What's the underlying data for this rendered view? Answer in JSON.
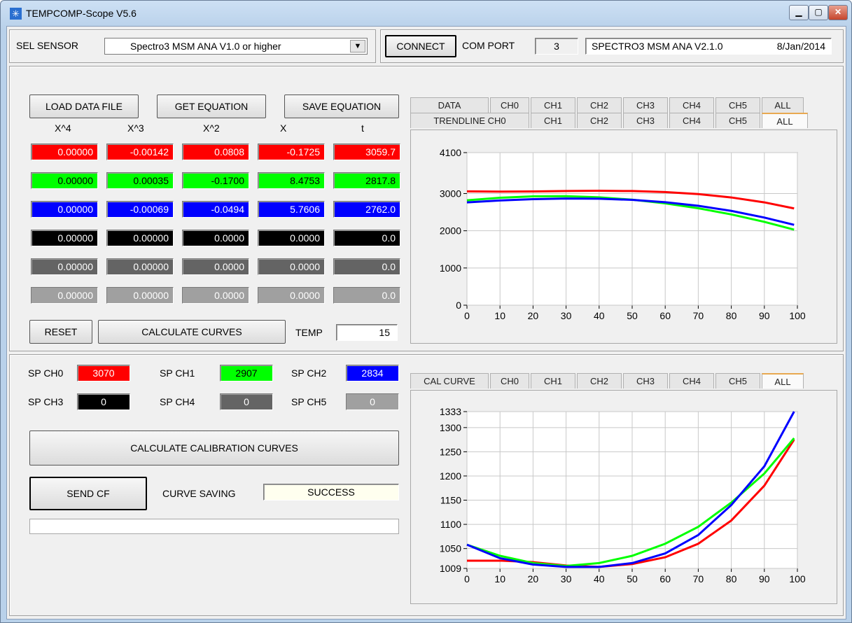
{
  "window": {
    "title": "TEMPCOMP-Scope V5.6"
  },
  "sensor": {
    "label": "SEL SENSOR",
    "selected": "Spectro3 MSM ANA V1.0 or higher",
    "connect_label": "CONNECT",
    "com_port_label": "COM PORT",
    "com_port_value": "3",
    "firmware": "SPECTRO3 MSM ANA V2.1.0",
    "firmware_date": "8/Jan/2014"
  },
  "equation": {
    "load_label": "LOAD DATA FILE",
    "get_label": "GET EQUATION",
    "save_label": "SAVE EQUATION",
    "headers": [
      "X^4",
      "X^3",
      "X^2",
      "X",
      "t"
    ],
    "rows": [
      {
        "bg": "#ff0000",
        "fg": "#ffffff",
        "values": [
          "0.00000",
          "-0.00142",
          "0.0808",
          "-0.1725",
          "3059.7"
        ]
      },
      {
        "bg": "#00ff00",
        "fg": "#000000",
        "values": [
          "0.00000",
          "0.00035",
          "-0.1700",
          "8.4753",
          "2817.8"
        ]
      },
      {
        "bg": "#0000ff",
        "fg": "#ffffff",
        "values": [
          "0.00000",
          "-0.00069",
          "-0.0494",
          "5.7606",
          "2762.0"
        ]
      },
      {
        "bg": "#000000",
        "fg": "#ffffff",
        "values": [
          "0.00000",
          "0.00000",
          "0.0000",
          "0.0000",
          "0.0"
        ]
      },
      {
        "bg": "#646464",
        "fg": "#ffffff",
        "values": [
          "0.00000",
          "0.00000",
          "0.0000",
          "0.0000",
          "0.0"
        ]
      },
      {
        "bg": "#a0a0a0",
        "fg": "#ffffff",
        "values": [
          "0.00000",
          "0.00000",
          "0.0000",
          "0.0000",
          "0.0"
        ]
      }
    ],
    "reset_label": "RESET",
    "calc_curves_label": "CALCULATE CURVES",
    "temp_label": "TEMP",
    "temp_value": "15"
  },
  "top_tabs": {
    "row1": [
      "DATA",
      "CH0",
      "CH1",
      "CH2",
      "CH3",
      "CH4",
      "CH5",
      "ALL"
    ],
    "row2": [
      "TRENDLINE CH0",
      "CH1",
      "CH2",
      "CH3",
      "CH4",
      "CH5",
      "ALL"
    ],
    "active": "ALL"
  },
  "setpoints": {
    "items": [
      {
        "label": "SP CH0",
        "value": "3070",
        "bg": "#ff0000",
        "fg": "#ffffff"
      },
      {
        "label": "SP CH1",
        "value": "2907",
        "bg": "#00ff00",
        "fg": "#000000"
      },
      {
        "label": "SP CH2",
        "value": "2834",
        "bg": "#0000ff",
        "fg": "#ffffff"
      },
      {
        "label": "SP CH3",
        "value": "0",
        "bg": "#000000",
        "fg": "#ffffff"
      },
      {
        "label": "SP CH4",
        "value": "0",
        "bg": "#646464",
        "fg": "#ffffff"
      },
      {
        "label": "SP CH5",
        "value": "0",
        "bg": "#a0a0a0",
        "fg": "#ffffff"
      }
    ],
    "calc_cal_label": "CALCULATE CALIBRATION CURVES",
    "send_cf_label": "SEND CF",
    "curve_saving_label": "CURVE SAVING",
    "curve_saving_value": "SUCCESS"
  },
  "bottom_tabs": {
    "items": [
      "CAL CURVE",
      "CH0",
      "CH1",
      "CH2",
      "CH3",
      "CH4",
      "CH5",
      "ALL"
    ],
    "active": "ALL"
  },
  "chart_data": [
    {
      "type": "line",
      "xlim": [
        0,
        100
      ],
      "ylim": [
        0,
        4100
      ],
      "xticks": [
        0,
        10,
        20,
        30,
        40,
        50,
        60,
        70,
        80,
        90,
        100
      ],
      "yticks": [
        0,
        1000,
        2000,
        3000,
        4100
      ],
      "grid": true,
      "x": [
        0,
        10,
        20,
        30,
        40,
        50,
        60,
        70,
        80,
        90,
        99
      ],
      "series": [
        {
          "color": "#ff0000",
          "values": [
            3059.7,
            3051,
            3057,
            3067,
            3074,
            3067,
            3040,
            2985,
            2895,
            2763,
            2600
          ]
        },
        {
          "color": "#00ff00",
          "values": [
            2817.8,
            2887,
            2925,
            2929,
            2899,
            2835,
            2737,
            2605,
            2439,
            2239,
            2030
          ]
        },
        {
          "color": "#0000ff",
          "values": [
            2762.0,
            2814,
            2849,
            2866,
            2861,
            2830,
            2768,
            2670,
            2534,
            2355,
            2160
          ]
        }
      ]
    },
    {
      "type": "line",
      "xlim": [
        0,
        100
      ],
      "ylim": [
        1009,
        1333
      ],
      "xticks": [
        0,
        10,
        20,
        30,
        40,
        50,
        60,
        70,
        80,
        90,
        100
      ],
      "yticks": [
        1009,
        1050,
        1100,
        1150,
        1200,
        1250,
        1300,
        1333
      ],
      "grid": true,
      "x": [
        0,
        10,
        20,
        30,
        40,
        50,
        60,
        70,
        80,
        90,
        99
      ],
      "series": [
        {
          "color": "#ff0000",
          "values": [
            1025,
            1025,
            1022,
            1015,
            1012,
            1018,
            1032,
            1060,
            1108,
            1180,
            1275
          ]
        },
        {
          "color": "#00ff00",
          "values": [
            1058,
            1035,
            1020,
            1014,
            1020,
            1035,
            1060,
            1095,
            1145,
            1205,
            1278
          ]
        },
        {
          "color": "#0000ff",
          "values": [
            1058,
            1030,
            1017,
            1012,
            1012,
            1020,
            1040,
            1078,
            1140,
            1220,
            1333
          ]
        }
      ]
    }
  ]
}
